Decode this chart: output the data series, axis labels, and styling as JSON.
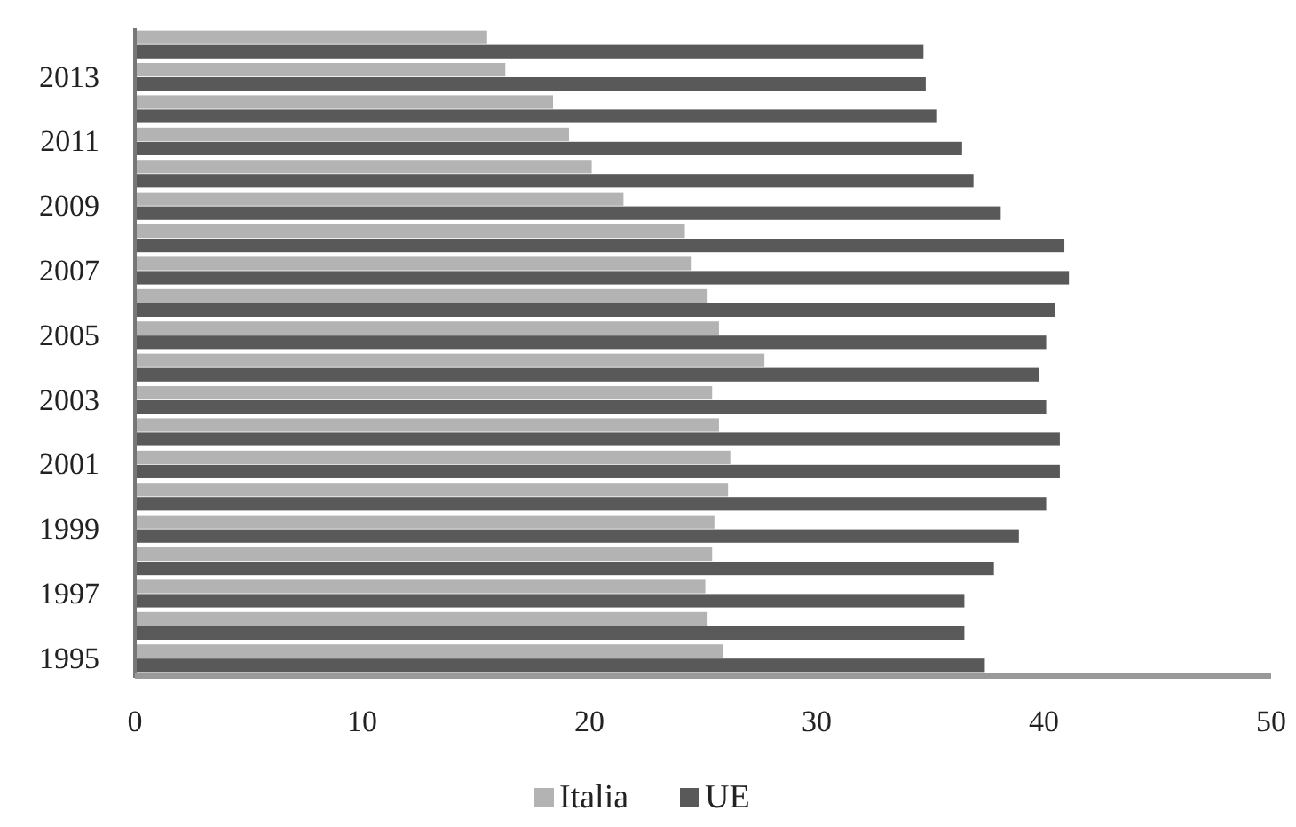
{
  "chart_data": {
    "type": "bar",
    "orientation": "horizontal",
    "categories": [
      null,
      "2013",
      null,
      "2011",
      null,
      "2009",
      null,
      "2007",
      null,
      "2005",
      null,
      "2003",
      null,
      "2001",
      null,
      "1999",
      null,
      "1997",
      null,
      "1995"
    ],
    "series": [
      {
        "name": "Italia",
        "color": "#b3b3b3",
        "values": [
          15.5,
          16.3,
          18.4,
          19.1,
          20.1,
          21.5,
          24.2,
          24.5,
          25.2,
          25.7,
          27.7,
          25.4,
          25.7,
          26.2,
          26.1,
          25.5,
          25.4,
          25.1,
          25.2,
          25.9
        ]
      },
      {
        "name": "UE",
        "color": "#595959",
        "values": [
          34.7,
          34.8,
          35.3,
          36.4,
          36.9,
          38.1,
          40.9,
          41.1,
          40.5,
          40.1,
          39.8,
          40.1,
          40.7,
          40.7,
          40.1,
          38.9,
          37.8,
          36.5,
          36.5,
          37.4
        ]
      }
    ],
    "xlim": [
      0,
      50
    ],
    "xticks": [
      0,
      10,
      20,
      30,
      40,
      50
    ],
    "grid": false,
    "legend": "bottom"
  }
}
